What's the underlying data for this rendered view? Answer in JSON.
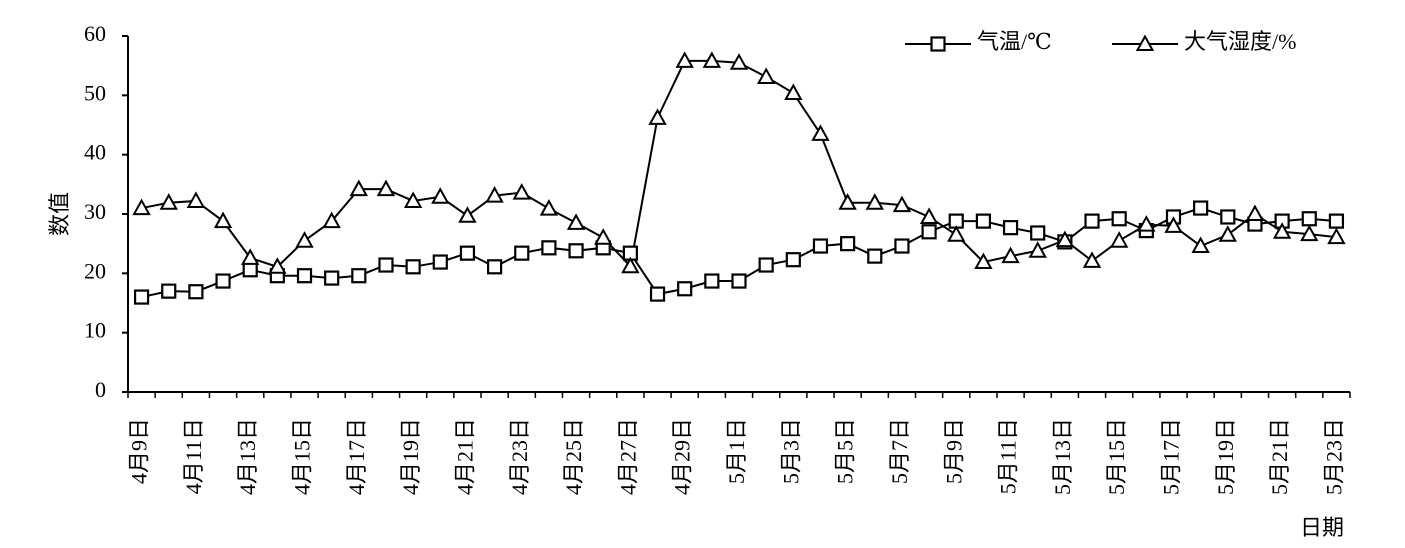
{
  "chart_data": {
    "type": "line",
    "x_label": "日期",
    "y_label": "数值",
    "categories": [
      "4月9日",
      null,
      "4月11日",
      null,
      "4月13日",
      null,
      "4月15日",
      null,
      "4月17日",
      null,
      "4月19日",
      null,
      "4月21日",
      null,
      "4月23日",
      null,
      "4月25日",
      null,
      "4月27日",
      null,
      "4月29日",
      null,
      "5月1日",
      null,
      "5月3日",
      null,
      "5月5日",
      null,
      "5月7日",
      null,
      "5月9日",
      null,
      "5月11日",
      null,
      "5月13日",
      null,
      "5月15日",
      null,
      "5月17日",
      null,
      "5月19日",
      null,
      "5月21日",
      null,
      "5月23日"
    ],
    "series": [
      {
        "name": "气温/℃",
        "color": "#000000",
        "marker": "square",
        "values": [
          16.0,
          17.0,
          16.9,
          18.7,
          20.6,
          19.6,
          19.6,
          19.2,
          19.6,
          21.4,
          21.1,
          21.9,
          23.4,
          21.1,
          23.4,
          24.3,
          23.8,
          24.3,
          23.4,
          16.5,
          17.4,
          18.7,
          18.7,
          21.4,
          22.3,
          24.6,
          25.0,
          22.9,
          24.6,
          27.0,
          28.8,
          28.8,
          27.7,
          26.8,
          25.3,
          28.8,
          29.2,
          27.2,
          29.5,
          31.0,
          29.5,
          28.3,
          28.8,
          29.2,
          28.8
        ]
      },
      {
        "name": "大气湿度/%",
        "color": "#000000",
        "marker": "triangle",
        "values": [
          31.0,
          31.9,
          32.2,
          28.8,
          22.6,
          21.1,
          25.5,
          28.8,
          34.2,
          34.2,
          32.2,
          32.9,
          29.7,
          33.1,
          33.6,
          30.9,
          28.5,
          26.0,
          21.2,
          46.2,
          55.8,
          55.8,
          55.5,
          53.1,
          50.4,
          43.5,
          31.9,
          31.9,
          31.5,
          29.5,
          26.5,
          21.9,
          22.9,
          23.8,
          25.6,
          22.1,
          25.5,
          28.2,
          28.0,
          24.6,
          26.5,
          30.0,
          27.0,
          26.6,
          26.1
        ]
      }
    ],
    "ylim": [
      0,
      60
    ],
    "yticks": [
      0,
      10,
      20,
      30,
      40,
      50,
      60
    ],
    "grid": false,
    "legend": "top-right"
  }
}
